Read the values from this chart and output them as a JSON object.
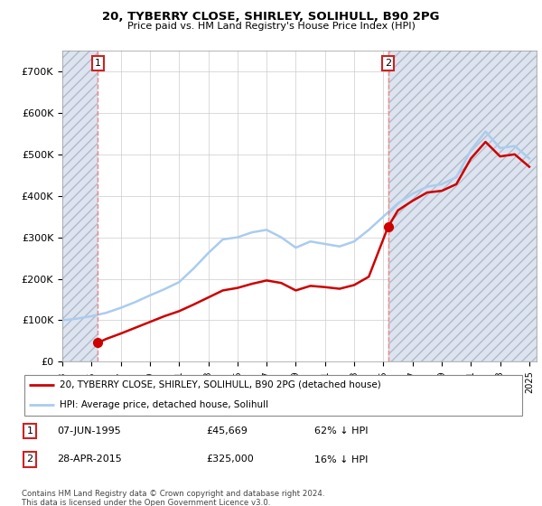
{
  "title1": "20, TYBERRY CLOSE, SHIRLEY, SOLIHULL, B90 2PG",
  "title2": "Price paid vs. HM Land Registry's House Price Index (HPI)",
  "ylim": [
    0,
    750000
  ],
  "yticks": [
    0,
    100000,
    200000,
    300000,
    400000,
    500000,
    600000,
    700000
  ],
  "ytick_labels": [
    "£0",
    "£100K",
    "£200K",
    "£300K",
    "£400K",
    "£500K",
    "£600K",
    "£700K"
  ],
  "sale1_year": 1995.44,
  "sale1_price": 45669,
  "sale2_year": 2015.32,
  "sale2_price": 325000,
  "xmin": 1993,
  "xmax": 2025.5,
  "legend_line1": "20, TYBERRY CLOSE, SHIRLEY, SOLIHULL, B90 2PG (detached house)",
  "legend_line2": "HPI: Average price, detached house, Solihull",
  "table_row1": [
    "1",
    "07-JUN-1995",
    "£45,669",
    "62% ↓ HPI"
  ],
  "table_row2": [
    "2",
    "28-APR-2015",
    "£325,000",
    "16% ↓ HPI"
  ],
  "copyright": "Contains HM Land Registry data © Crown copyright and database right 2024.\nThis data is licensed under the Open Government Licence v3.0.",
  "hpi_color": "#aaccee",
  "price_color": "#cc0000",
  "vline_color": "#ee8888",
  "hatch_facecolor": "#dde4ef",
  "hatch_edgecolor": "#b0baca",
  "hpi_years": [
    1993,
    1994,
    1995,
    1996,
    1997,
    1998,
    1999,
    2000,
    2001,
    2002,
    2003,
    2004,
    2005,
    2006,
    2007,
    2008,
    2009,
    2010,
    2011,
    2012,
    2013,
    2014,
    2015,
    2016,
    2017,
    2018,
    2019,
    2020,
    2021,
    2022,
    2023,
    2024,
    2025
  ],
  "hpi_values": [
    100000,
    104000,
    110000,
    118000,
    130000,
    144000,
    160000,
    175000,
    192000,
    225000,
    262000,
    295000,
    300000,
    312000,
    318000,
    300000,
    275000,
    290000,
    284000,
    278000,
    290000,
    318000,
    350000,
    382000,
    405000,
    422000,
    428000,
    445000,
    510000,
    555000,
    515000,
    520000,
    490000
  ],
  "prop_years": [
    1995.44,
    1996,
    1997,
    1998,
    1999,
    2000,
    2001,
    2002,
    2003,
    2004,
    2005,
    2006,
    2007,
    2008,
    2009,
    2010,
    2011,
    2012,
    2013,
    2014,
    2015.32
  ],
  "prop_values": [
    45669,
    55000,
    68000,
    82000,
    96000,
    110000,
    122000,
    138000,
    155000,
    172000,
    178000,
    188000,
    196000,
    190000,
    172000,
    183000,
    180000,
    176000,
    185000,
    205000,
    325000
  ],
  "prop_years2": [
    2015.32,
    2016,
    2017,
    2018,
    2019,
    2020,
    2021,
    2022,
    2023,
    2024,
    2025
  ],
  "prop_values2": [
    325000,
    365000,
    388000,
    408000,
    412000,
    428000,
    490000,
    530000,
    495000,
    500000,
    470000
  ]
}
